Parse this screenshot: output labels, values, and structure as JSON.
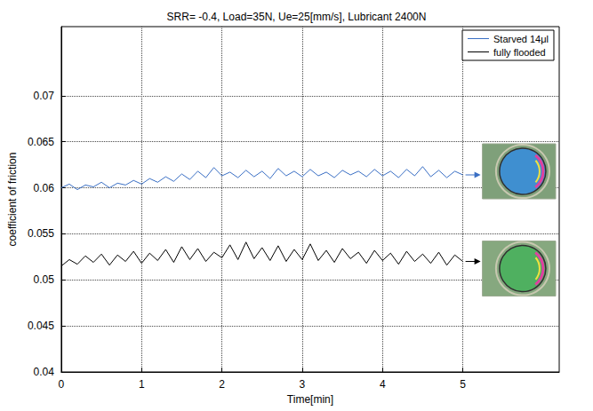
{
  "chart_data": {
    "type": "line",
    "title": "SRR= -0.4, Load=35N, Ue=25[mm/s], Lubricant 2400N",
    "x_label": "Time[min]",
    "y_label": "coefficient of friction",
    "x": [
      0,
      0.1,
      0.2,
      0.3,
      0.4,
      0.5,
      0.6,
      0.7,
      0.8,
      0.9,
      1,
      1.1,
      1.2,
      1.3,
      1.4,
      1.5,
      1.6,
      1.7,
      1.8,
      1.9,
      2,
      2.1,
      2.2,
      2.3,
      2.4,
      2.5,
      2.6,
      2.7,
      2.8,
      2.9,
      3,
      3.1,
      3.2,
      3.3,
      3.4,
      3.5,
      3.6,
      3.7,
      3.8,
      3.9,
      4,
      4.1,
      4.2,
      4.3,
      4.4,
      4.5,
      4.6,
      4.7,
      4.8,
      4.9,
      5
    ],
    "series": [
      {
        "name": "Starved 14μl",
        "color": "#3a6fc4",
        "marker": "none",
        "line_style": "solid",
        "values": [
          0.06,
          0.0604,
          0.0598,
          0.0603,
          0.0601,
          0.0606,
          0.06,
          0.0605,
          0.0603,
          0.0608,
          0.0604,
          0.061,
          0.0606,
          0.0612,
          0.0607,
          0.0615,
          0.0609,
          0.0618,
          0.0611,
          0.0622,
          0.0613,
          0.0617,
          0.0611,
          0.0619,
          0.0612,
          0.0618,
          0.061,
          0.0621,
          0.0613,
          0.0618,
          0.0612,
          0.062,
          0.0613,
          0.0617,
          0.0611,
          0.0619,
          0.0614,
          0.0618,
          0.0612,
          0.062,
          0.0613,
          0.0618,
          0.0611,
          0.062,
          0.0613,
          0.0623,
          0.0612,
          0.0619,
          0.0611,
          0.0618,
          0.0614
        ]
      },
      {
        "name": "fully flooded",
        "color": "#000000",
        "marker": "none",
        "line_style": "solid",
        "values": [
          0.0515,
          0.0522,
          0.0517,
          0.0526,
          0.0519,
          0.0528,
          0.0516,
          0.0527,
          0.052,
          0.0531,
          0.0518,
          0.0529,
          0.0521,
          0.0533,
          0.0519,
          0.0536,
          0.0522,
          0.0534,
          0.052,
          0.053,
          0.0524,
          0.0538,
          0.0522,
          0.0541,
          0.0523,
          0.0535,
          0.0521,
          0.0537,
          0.052,
          0.0533,
          0.0522,
          0.0539,
          0.0521,
          0.0532,
          0.0519,
          0.0534,
          0.0523,
          0.053,
          0.0518,
          0.0532,
          0.0521,
          0.0529,
          0.0517,
          0.0531,
          0.052,
          0.0528,
          0.0518,
          0.053,
          0.0516,
          0.0527,
          0.052
        ]
      }
    ],
    "xlim": [
      0,
      6.2
    ],
    "xticks": [
      0,
      1,
      2,
      3,
      4,
      5
    ],
    "ylim": [
      0.04,
      0.0775
    ],
    "yticks": [
      0.04,
      0.045,
      0.05,
      0.055,
      0.06,
      0.065,
      0.07
    ],
    "grid": true,
    "legend": "upper right"
  }
}
